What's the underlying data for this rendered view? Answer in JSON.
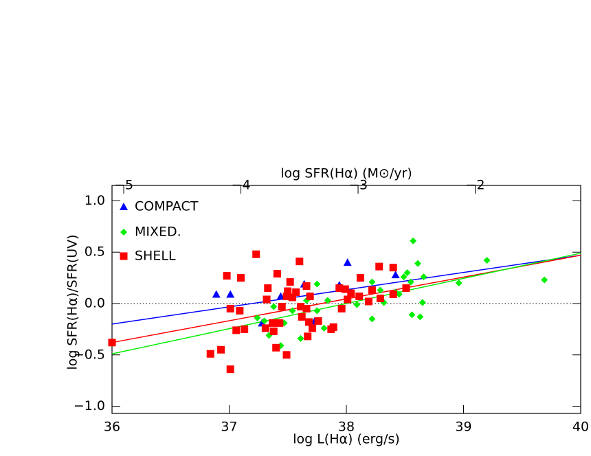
{
  "chart_data": {
    "type": "scatter",
    "xlabel": "log L(Hα) (erg/s)",
    "ylabel": "log SFR(Hα)/SFR(UV)",
    "x2label": "log SFR(Hα) (M⊙/yr)",
    "xlim": [
      36,
      40
    ],
    "xticks": [
      36,
      37,
      38,
      39,
      40
    ],
    "x2lim": [
      -5.1,
      -1.1
    ],
    "x2ticks": [
      {
        "value": -5,
        "label": "−5"
      },
      {
        "value": -4,
        "label": "−4"
      },
      {
        "value": -3,
        "label": "−3"
      },
      {
        "value": -2,
        "label": "−2"
      }
    ],
    "ylim": [
      -1.07,
      1.15
    ],
    "yticks": [
      {
        "value": -1,
        "label": "−1.0"
      },
      {
        "value": -0.5,
        "label": "−0.5"
      },
      {
        "value": 0,
        "label": "0.0"
      },
      {
        "value": 0.5,
        "label": "0.5"
      },
      {
        "value": 1,
        "label": "1.0"
      }
    ],
    "reference_line": 0,
    "legend": "top-left",
    "series": [
      {
        "name": "COMPACT",
        "color": "#0000ff",
        "marker": "triangle",
        "x": [
          36.89,
          37.01,
          37.28,
          37.44,
          37.64,
          37.73,
          37.94,
          38.01,
          38.42
        ],
        "values": [
          0.09,
          0.09,
          -0.19,
          0.07,
          0.19,
          -0.17,
          0.18,
          0.4,
          0.28
        ]
      },
      {
        "name": "MIXED.",
        "color": "#00ee00",
        "marker": "diamond",
        "x": [
          37.24,
          37.3,
          37.34,
          37.38,
          37.44,
          37.47,
          37.54,
          37.61,
          37.66,
          37.75,
          37.75,
          37.81,
          37.84,
          38.01,
          38.09,
          38.22,
          38.22,
          38.29,
          38.32,
          38.42,
          38.45,
          38.49,
          38.52,
          38.55,
          38.57,
          38.56,
          38.61,
          38.63,
          38.65,
          38.66,
          38.96,
          39.2,
          39.69
        ],
        "values": [
          -0.14,
          -0.17,
          -0.31,
          -0.03,
          -0.41,
          -0.19,
          -0.07,
          -0.34,
          0.03,
          0.19,
          -0.07,
          -0.24,
          0.03,
          0.03,
          -0.01,
          0.21,
          -0.15,
          0.13,
          0.01,
          0.11,
          0.09,
          0.26,
          0.3,
          0.21,
          0.61,
          -0.11,
          0.39,
          -0.13,
          0.01,
          0.26,
          0.2,
          0.42,
          0.23
        ]
      },
      {
        "name": "SHELL",
        "color": "#ff0000",
        "marker": "square",
        "x": [
          36.0,
          36.84,
          36.93,
          36.98,
          37.01,
          37.01,
          37.06,
          37.09,
          37.1,
          37.13,
          37.23,
          37.31,
          37.32,
          37.33,
          37.37,
          37.38,
          37.4,
          37.41,
          37.43,
          37.45,
          37.49,
          37.49,
          37.5,
          37.52,
          37.54,
          37.57,
          37.6,
          37.61,
          37.62,
          37.66,
          37.66,
          37.67,
          37.68,
          37.69,
          37.71,
          37.76,
          37.87,
          37.89,
          37.94,
          37.96,
          37.99,
          38.01,
          38.04,
          38.11,
          38.12,
          38.19,
          38.22,
          38.28,
          38.29,
          38.4,
          38.4,
          38.51
        ],
        "values": [
          -0.38,
          -0.49,
          -0.45,
          0.27,
          -0.64,
          -0.05,
          -0.26,
          -0.07,
          0.25,
          -0.25,
          0.48,
          -0.24,
          0.04,
          0.15,
          -0.19,
          -0.27,
          -0.43,
          0.29,
          -0.19,
          -0.03,
          0.07,
          -0.5,
          0.12,
          0.21,
          0.06,
          0.11,
          0.41,
          -0.03,
          -0.13,
          0.17,
          -0.05,
          -0.32,
          -0.18,
          0.07,
          -0.24,
          -0.17,
          -0.25,
          -0.23,
          0.15,
          -0.05,
          0.14,
          0.04,
          0.1,
          0.07,
          0.25,
          0.02,
          0.13,
          0.36,
          0.05,
          0.35,
          0.09,
          0.15
        ]
      }
    ],
    "fit_lines": [
      {
        "color": "#0000ff",
        "x": [
          36,
          40
        ],
        "values": [
          -0.2,
          0.47
        ]
      },
      {
        "color": "#ff0000",
        "x": [
          36,
          40
        ],
        "values": [
          -0.38,
          0.47
        ]
      },
      {
        "color": "#00ee00",
        "x": [
          36,
          40
        ],
        "values": [
          -0.49,
          0.49
        ]
      }
    ]
  }
}
